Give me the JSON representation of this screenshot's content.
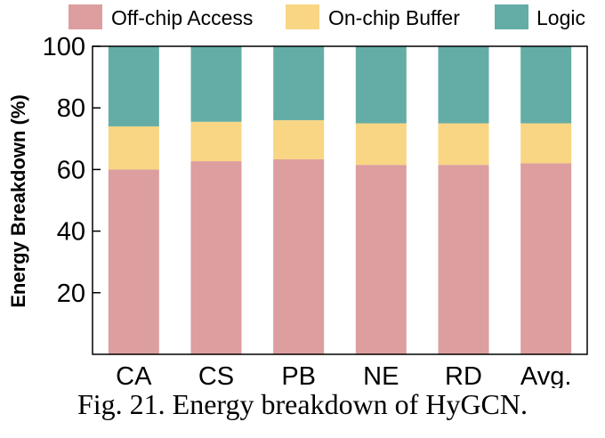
{
  "caption": "Fig. 21.  Energy breakdown of HyGCN.",
  "chart_data": {
    "type": "bar",
    "stacked": true,
    "categories": [
      "CA",
      "CS",
      "PB",
      "NE",
      "RD",
      "Avg."
    ],
    "series": [
      {
        "name": "Off-chip Access",
        "color": "#dd9e9f",
        "values": [
          60,
          62.7,
          63.3,
          61.5,
          61.5,
          62
        ]
      },
      {
        "name": "On-chip Buffer",
        "color": "#f8d684",
        "values": [
          14,
          12.8,
          12.7,
          13.5,
          13.5,
          13
        ]
      },
      {
        "name": "Logic",
        "color": "#64ada6",
        "values": [
          26,
          24.5,
          24,
          25,
          25,
          25
        ]
      }
    ],
    "ylabel": "Energy Breakdown (%)",
    "xlabel": "",
    "ylim": [
      0,
      100
    ],
    "yticks": [
      20,
      40,
      60,
      80,
      100
    ],
    "legend": "top",
    "grid": false
  }
}
